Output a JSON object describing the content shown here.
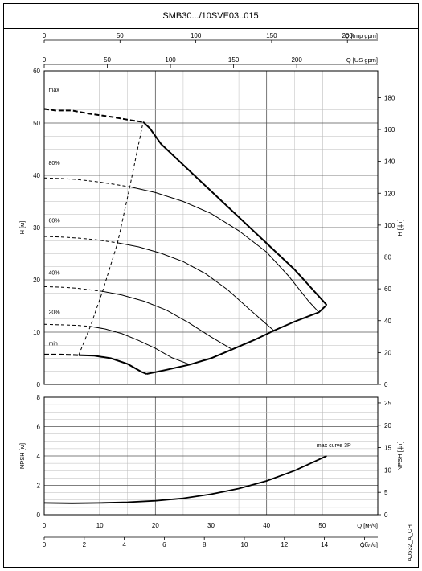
{
  "title": "SMB30.../10SVE03..015",
  "code": "A0532_A_CH",
  "chart_data": [
    {
      "type": "line",
      "name": "head",
      "xlim": [
        0,
        60
      ],
      "ylim": [
        0,
        60
      ],
      "ylabel_left": "H [м]",
      "ylabel_right": "H [фт]",
      "right_ylim": [
        0,
        196.85
      ],
      "yticks_left": [
        0,
        10,
        20,
        30,
        40,
        50,
        60
      ],
      "yticks_right": [
        0,
        20,
        40,
        60,
        80,
        100,
        120,
        140,
        160,
        180
      ],
      "top_axes": [
        {
          "label": "Q [Imp gpm]",
          "ticks": [
            0,
            50,
            100,
            150,
            200
          ],
          "factor": 3.66
        }
      ],
      "second_top_axes": [
        {
          "label": "Q [US gpm]",
          "ticks": [
            0,
            50,
            100,
            150,
            200
          ],
          "factor": 4.403
        }
      ],
      "series": [
        {
          "name": "max",
          "dashed": [
            [
              0,
              52.7
            ],
            [
              2,
              52.4
            ],
            [
              5,
              52.4
            ],
            [
              8,
              51.8
            ],
            [
              12,
              51.2
            ],
            [
              15.8,
              50.5
            ],
            [
              17.8,
              50.2
            ]
          ],
          "solid": [
            [
              17.8,
              50.2
            ],
            [
              19,
              49
            ],
            [
              21,
              46
            ],
            [
              25,
              42
            ],
            [
              30,
              37
            ],
            [
              35,
              32
            ],
            [
              40,
              27
            ],
            [
              45,
              22
            ],
            [
              48,
              18.5
            ],
            [
              50.8,
              15.2
            ]
          ],
          "bold": true
        },
        {
          "name": "80%",
          "dashed": [
            [
              0,
              39.5
            ],
            [
              3,
              39.4
            ],
            [
              6,
              39.2
            ],
            [
              10,
              38.7
            ],
            [
              15.4,
              37.8
            ]
          ],
          "solid": [
            [
              15.4,
              37.8
            ],
            [
              20,
              36.7
            ],
            [
              25,
              35
            ],
            [
              30,
              32.7
            ],
            [
              35,
              29.4
            ],
            [
              40,
              25.3
            ],
            [
              44,
              20.7
            ],
            [
              47.5,
              16
            ],
            [
              49.4,
              13.8
            ]
          ]
        },
        {
          "name": "60%",
          "dashed": [
            [
              0,
              28.3
            ],
            [
              3,
              28.2
            ],
            [
              6,
              28
            ],
            [
              9,
              27.7
            ],
            [
              13.2,
              27.1
            ]
          ],
          "solid": [
            [
              13.2,
              27.1
            ],
            [
              17,
              26.3
            ],
            [
              21,
              25.1
            ],
            [
              25,
              23.5
            ],
            [
              29,
              21.2
            ],
            [
              33,
              18.1
            ],
            [
              37,
              14.3
            ],
            [
              41.3,
              10.3
            ]
          ]
        },
        {
          "name": "40%",
          "dashed": [
            [
              0,
              18.7
            ],
            [
              3,
              18.6
            ],
            [
              6,
              18.4
            ],
            [
              10.5,
              17.8
            ]
          ],
          "solid": [
            [
              10.5,
              17.8
            ],
            [
              14,
              17.1
            ],
            [
              18,
              15.9
            ],
            [
              22,
              14.2
            ],
            [
              26,
              11.8
            ],
            [
              30,
              9.1
            ],
            [
              33.8,
              6.7
            ]
          ]
        },
        {
          "name": "20%",
          "dashed": [
            [
              0,
              11.5
            ],
            [
              3,
              11.4
            ],
            [
              6,
              11.3
            ],
            [
              8.3,
              11.1
            ]
          ],
          "solid": [
            [
              8.3,
              11.1
            ],
            [
              11,
              10.6
            ],
            [
              14,
              9.7
            ],
            [
              17,
              8.4
            ],
            [
              20,
              6.9
            ],
            [
              23,
              5.1
            ],
            [
              26.2,
              3.8
            ]
          ]
        },
        {
          "name": "min",
          "dashed": [
            [
              0,
              5.7
            ],
            [
              3,
              5.7
            ],
            [
              6.2,
              5.6
            ]
          ],
          "solid": [
            [
              6.2,
              5.6
            ],
            [
              9,
              5.5
            ],
            [
              12,
              5.0
            ],
            [
              15,
              3.9
            ],
            [
              17.5,
              2.4
            ],
            [
              18.4,
              2.0
            ]
          ],
          "bold": true
        },
        {
          "name": "min-boundary",
          "solid": [
            [
              18.4,
              2.0
            ],
            [
              22,
              2.8
            ],
            [
              26.2,
              3.8
            ],
            [
              30,
              5.0
            ],
            [
              33.8,
              6.7
            ],
            [
              38,
              8.6
            ],
            [
              41.3,
              10.3
            ],
            [
              45,
              12.0
            ],
            [
              49.4,
              13.8
            ],
            [
              50.8,
              15.2
            ]
          ],
          "bold": true
        },
        {
          "name": "efficiency",
          "dashed": [
            [
              6.2,
              5.6
            ],
            [
              8.3,
              11.1
            ],
            [
              10.5,
              17.8
            ],
            [
              13.2,
              27.1
            ],
            [
              15.4,
              37.8
            ],
            [
              17.8,
              50.2
            ]
          ]
        }
      ],
      "labels": [
        "max",
        "80%",
        "60%",
        "40%",
        "20%",
        "min"
      ],
      "label_y": [
        56,
        42,
        31,
        21,
        13.5,
        7.5
      ]
    },
    {
      "type": "line",
      "name": "npsh",
      "xlim": [
        0,
        60
      ],
      "ylim": [
        0,
        8
      ],
      "ylabel_left": "NPSH [м]",
      "ylabel_right": "NPSH [фт]",
      "right_ylim": [
        0,
        26.25
      ],
      "yticks_left": [
        0,
        2,
        4,
        6,
        8
      ],
      "yticks_right": [
        0,
        5,
        10,
        15,
        20,
        25
      ],
      "xlabel_1": "Q [м³/ч]",
      "xticks_1": [
        0,
        10,
        20,
        30,
        40,
        50
      ],
      "xlabel_2": "Q [л/с]",
      "xticks_2": [
        0,
        2,
        4,
        6,
        8,
        10,
        12,
        14,
        16
      ],
      "series": [
        {
          "name": "max curve 3P",
          "x": [
            0,
            5,
            10,
            15,
            20,
            25,
            30,
            35,
            40,
            45,
            50.8
          ],
          "y": [
            0.8,
            0.78,
            0.8,
            0.85,
            0.95,
            1.12,
            1.4,
            1.78,
            2.3,
            3.0,
            4.0
          ]
        }
      ]
    }
  ]
}
